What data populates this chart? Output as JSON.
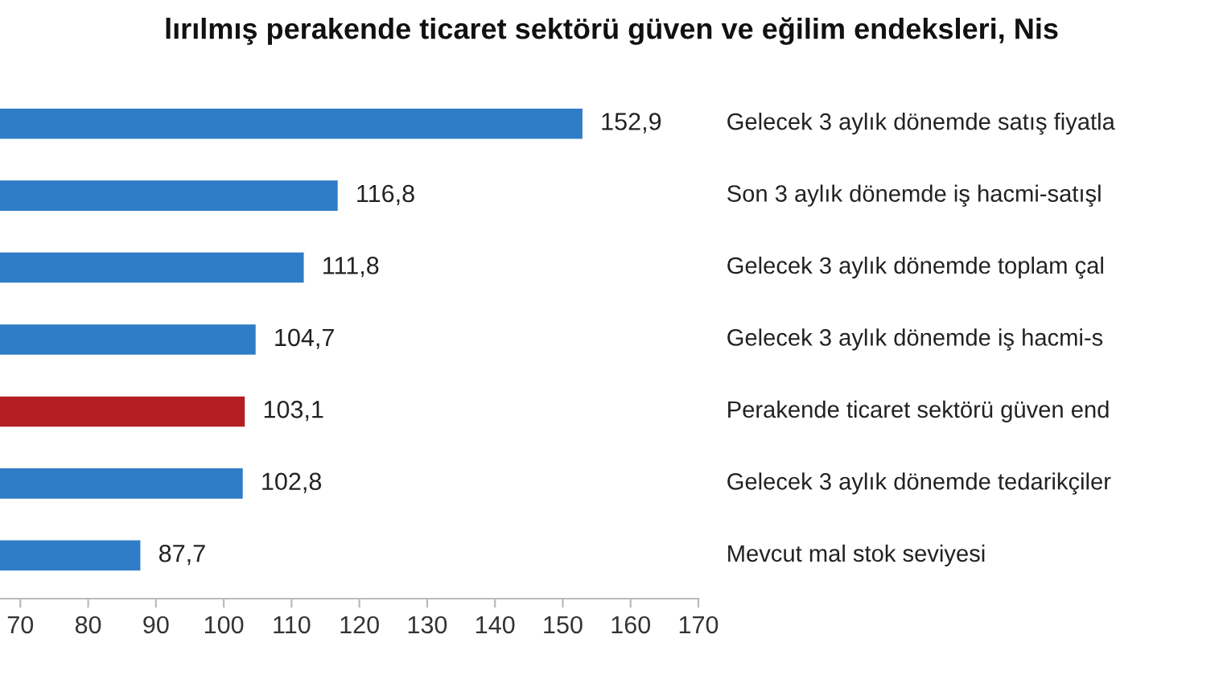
{
  "chart_data": {
    "type": "bar",
    "orientation": "horizontal",
    "title": "lırılmış perakende ticaret sektörü güven ve eğilim endeksleri, Nis",
    "categories": [
      "Gelecek 3 aylık dönemde satış fiyatla",
      "Son 3 aylık dönemde iş hacmi-satışl",
      "Gelecek 3 aylık dönemde toplam çal",
      "Gelecek 3 aylık dönemde iş hacmi-s",
      "Perakende ticaret sektörü güven end",
      "Gelecek 3 aylık dönemde tedarikçiler",
      "Mevcut mal stok seviyesi"
    ],
    "values": [
      152.9,
      116.8,
      111.8,
      104.7,
      103.1,
      102.8,
      87.7
    ],
    "value_labels": [
      "152,9",
      "116,8",
      "111,8",
      "104,7",
      "103,1",
      "102,8",
      "87,7"
    ],
    "colors": [
      "#2f7dc6",
      "#2f7dc6",
      "#2f7dc6",
      "#2f7dc6",
      "#b21e23",
      "#2f7dc6",
      "#2f7dc6"
    ],
    "xlim": [
      67,
      170
    ],
    "xticks": [
      70,
      80,
      90,
      100,
      110,
      120,
      130,
      140,
      150,
      160,
      170
    ],
    "grid": false
  }
}
